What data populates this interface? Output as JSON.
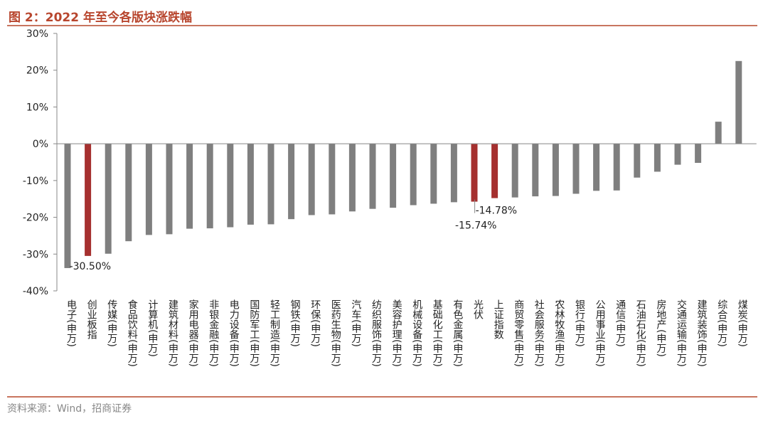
{
  "header": {
    "title": "图 2：2022 年至今各版块涨跌幅"
  },
  "footer": {
    "source": "资料来源：Wind，招商证券"
  },
  "chart_data": {
    "type": "bar",
    "title": "图 2：2022 年至今各版块涨跌幅",
    "xlabel": "",
    "ylabel": "",
    "ylim": [
      -40,
      30
    ],
    "yticks": [
      "30%",
      "20%",
      "10%",
      "0%",
      "-10%",
      "-20%",
      "-30%",
      "-40%"
    ],
    "yticks_values": [
      30,
      20,
      10,
      0,
      -10,
      -20,
      -30,
      -40
    ],
    "grid": false,
    "colors": {
      "default": "#7f7f7f",
      "highlight": "#a5302f",
      "axis": "#888888",
      "title": "#b8462e"
    },
    "categories": [
      "电子(申万)",
      "创业板指",
      "传媒(申万)",
      "食品饮料(申万)",
      "计算机(申万)",
      "建筑材料(申万)",
      "家用电器(申万)",
      "非银金融(申万)",
      "电力设备(申万)",
      "国防军工(申万)",
      "轻工制造(申万)",
      "钢铁(申万)",
      "环保(申万)",
      "医药生物(申万)",
      "汽车(申万)",
      "纺织服饰(申万)",
      "美容护理(申万)",
      "机械设备(申万)",
      "基础化工(申万)",
      "有色金属(申万)",
      "光伏",
      "上证指数",
      "商贸零售(申万)",
      "社会服务(申万)",
      "农林牧渔(申万)",
      "银行(申万)",
      "公用事业(申万)",
      "通信(申万)",
      "石油石化(申万)",
      "房地产(申万)",
      "交通运输(申万)",
      "建筑装饰(申万)",
      "综合(申万)",
      "煤炭(申万)"
    ],
    "values": [
      -33.8,
      -30.5,
      -29.9,
      -26.5,
      -24.8,
      -24.6,
      -23.1,
      -23.0,
      -22.7,
      -22.0,
      -21.9,
      -20.5,
      -19.4,
      -19.2,
      -18.4,
      -17.7,
      -17.4,
      -16.7,
      -16.3,
      -15.9,
      -15.74,
      -14.78,
      -14.6,
      -14.3,
      -14.2,
      -13.6,
      -12.8,
      -12.7,
      -9.2,
      -7.6,
      -5.7,
      -5.2,
      6.0,
      22.5
    ],
    "highlight": [
      "创业板指",
      "光伏",
      "上证指数"
    ],
    "data_labels": [
      {
        "category": "创业板指",
        "text": "-30.50%"
      },
      {
        "category": "光伏",
        "text": "-15.74%"
      },
      {
        "category": "上证指数",
        "text": "-14.78%"
      }
    ]
  }
}
